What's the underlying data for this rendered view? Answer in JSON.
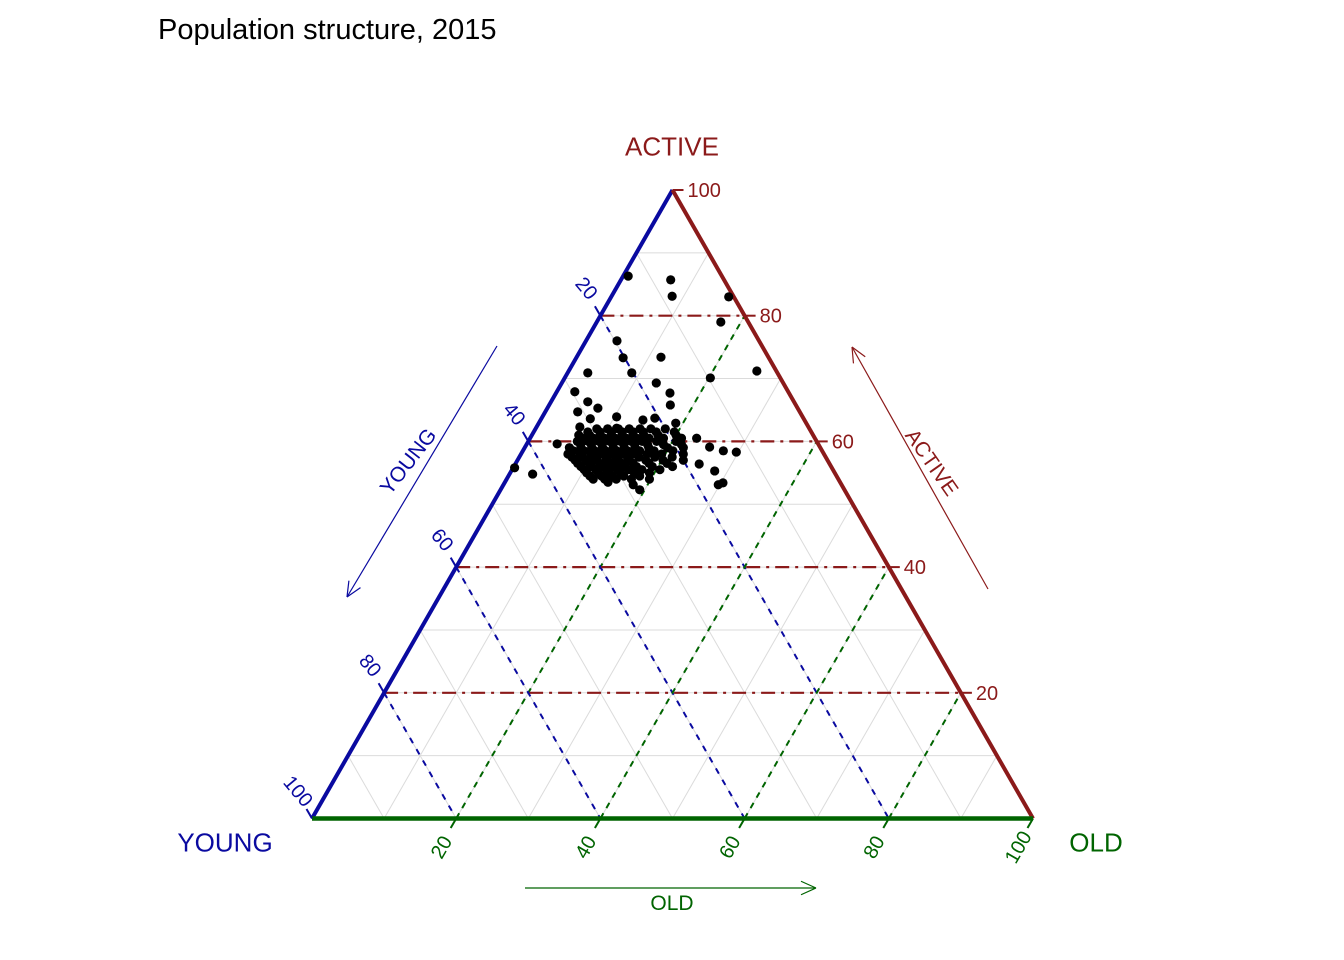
{
  "title": "Population structure, 2015",
  "axes": {
    "active": {
      "label": "ACTIVE",
      "color": "#8B1A1A",
      "ticks": [
        20,
        40,
        60,
        80,
        100
      ]
    },
    "young": {
      "label": "YOUNG",
      "color": "#0A0AA0",
      "ticks": [
        20,
        40,
        60,
        80,
        100
      ]
    },
    "old": {
      "label": "OLD",
      "color": "#006400",
      "ticks": [
        20,
        40,
        60,
        80,
        100
      ]
    }
  },
  "chart_data": {
    "type": "scatter",
    "subtype": "ternary",
    "title": "Population structure, 2015",
    "axis_labels": [
      "YOUNG",
      "ACTIVE",
      "OLD"
    ],
    "axis_range": [
      0,
      100
    ],
    "tick_step": 20,
    "minor_grid_step": 10,
    "grid_on": true,
    "point_color": "#000000",
    "point_radius": 4.6,
    "grid_colors": {
      "active": "#8B1A1A",
      "young": "#0A0AA0",
      "old": "#006400",
      "minor": "#DBDBDB"
    },
    "note": "Each point is [active_pct, old_pct]; young_pct = 100 - active_pct - old_pct",
    "points": [
      [
        85.7,
        6.9
      ],
      [
        83.1,
        8.4
      ],
      [
        86.3,
        0.7
      ],
      [
        83,
        16.3
      ],
      [
        79,
        17.2
      ],
      [
        71.2,
        26.1
      ],
      [
        76,
        4.3
      ],
      [
        73.3,
        6.5
      ],
      [
        70.9,
        8.9
      ],
      [
        70.9,
        2.8
      ],
      [
        73.4,
        11.7
      ],
      [
        70.1,
        20.2
      ],
      [
        69.3,
        13.1
      ],
      [
        67.7,
        15.8
      ],
      [
        65.8,
        16.8
      ],
      [
        67.9,
        2.5
      ],
      [
        66.3,
        5.1
      ],
      [
        65.3,
        7
      ],
      [
        64.7,
        4.5
      ],
      [
        63.6,
        6.8
      ],
      [
        63.9,
        10.3
      ],
      [
        62.1,
        11.2
      ],
      [
        63.4,
        14.2
      ],
      [
        63.7,
        15.7
      ],
      [
        62.9,
        19
      ],
      [
        62.3,
        6
      ],
      [
        60.5,
        23.1
      ],
      [
        59.1,
        25.6
      ],
      [
        58.5,
        27.8
      ],
      [
        58.3,
        29.7
      ],
      [
        56.4,
        25.5
      ],
      [
        55.3,
        28.2
      ],
      [
        53.1,
        29.8
      ],
      [
        59.6,
        4.2
      ],
      [
        54.8,
        3.2
      ],
      [
        55.8,
        0.2
      ],
      [
        53.5,
        14.3
      ],
      [
        53.1,
        18
      ],
      [
        52.3,
        19.3
      ],
      [
        53.4,
        30.3
      ],
      [
        62,
        8.5
      ],
      [
        62,
        10
      ],
      [
        62,
        11.5
      ],
      [
        62,
        13
      ],
      [
        62,
        14.5
      ],
      [
        62,
        16
      ],
      [
        62,
        18
      ],
      [
        61.5,
        7.5
      ],
      [
        61.5,
        9.2
      ],
      [
        61.5,
        10.8
      ],
      [
        61.5,
        12.3
      ],
      [
        61.5,
        13.8
      ],
      [
        61.5,
        15.2
      ],
      [
        61.5,
        17
      ],
      [
        61.5,
        19.5
      ],
      [
        61,
        6.5
      ],
      [
        61,
        8
      ],
      [
        61,
        9.5
      ],
      [
        61,
        11
      ],
      [
        61,
        12.5
      ],
      [
        61,
        14
      ],
      [
        61,
        15.5
      ],
      [
        61,
        17.5
      ],
      [
        61,
        20
      ],
      [
        60.5,
        7.2
      ],
      [
        60.5,
        8.8
      ],
      [
        60.5,
        10.3
      ],
      [
        60.5,
        11.8
      ],
      [
        60.5,
        13.3
      ],
      [
        60.5,
        14.8
      ],
      [
        60.5,
        16.5
      ],
      [
        60.5,
        18.5
      ],
      [
        60.5,
        21
      ],
      [
        60,
        6.8
      ],
      [
        60,
        8.3
      ],
      [
        60,
        9.8
      ],
      [
        60,
        11.3
      ],
      [
        60,
        12.8
      ],
      [
        60,
        14.3
      ],
      [
        60,
        15.8
      ],
      [
        60,
        17.8
      ],
      [
        60,
        20.5
      ],
      [
        59.5,
        7.5
      ],
      [
        59.5,
        9
      ],
      [
        59.5,
        10.5
      ],
      [
        59.5,
        12
      ],
      [
        59.5,
        13.5
      ],
      [
        59.5,
        15
      ],
      [
        59.5,
        16.8
      ],
      [
        59.5,
        19
      ],
      [
        59.5,
        21.5
      ],
      [
        59,
        6.2
      ],
      [
        59,
        7.8
      ],
      [
        59,
        9.3
      ],
      [
        59,
        10.8
      ],
      [
        59,
        12.3
      ],
      [
        59,
        13.8
      ],
      [
        59,
        15.3
      ],
      [
        59,
        17.2
      ],
      [
        59,
        19.8
      ],
      [
        59,
        22
      ],
      [
        58.5,
        7
      ],
      [
        58.5,
        8.5
      ],
      [
        58.5,
        10
      ],
      [
        58.5,
        11.5
      ],
      [
        58.5,
        13
      ],
      [
        58.5,
        14.5
      ],
      [
        58.5,
        16.2
      ],
      [
        58.5,
        18.2
      ],
      [
        58.5,
        20.8
      ],
      [
        58,
        6.5
      ],
      [
        58,
        8.2
      ],
      [
        58,
        9.7
      ],
      [
        58,
        11.2
      ],
      [
        58,
        12.7
      ],
      [
        58,
        14.2
      ],
      [
        58,
        15.7
      ],
      [
        58,
        17.5
      ],
      [
        58,
        19.5
      ],
      [
        58,
        22.5
      ],
      [
        57.5,
        7.3
      ],
      [
        57.5,
        8.8
      ],
      [
        57.5,
        10.4
      ],
      [
        57.5,
        12
      ],
      [
        57.5,
        13.4
      ],
      [
        57.5,
        15
      ],
      [
        57.5,
        16.6
      ],
      [
        57.5,
        18.8
      ],
      [
        57.5,
        21.2
      ],
      [
        57,
        8
      ],
      [
        57,
        9.5
      ],
      [
        57,
        11
      ],
      [
        57,
        12.5
      ],
      [
        57,
        14
      ],
      [
        57,
        15.5
      ],
      [
        57,
        17.8
      ],
      [
        57,
        20.2
      ],
      [
        57,
        23
      ],
      [
        56.5,
        8.6
      ],
      [
        56.5,
        10.2
      ],
      [
        56.5,
        11.7
      ],
      [
        56.5,
        13.2
      ],
      [
        56.5,
        14.7
      ],
      [
        56.5,
        16.3
      ],
      [
        56.5,
        18.5
      ],
      [
        56.5,
        21
      ],
      [
        56,
        9.3
      ],
      [
        56,
        10.8
      ],
      [
        56,
        12.4
      ],
      [
        56,
        13.9
      ],
      [
        56,
        15.4
      ],
      [
        56,
        17
      ],
      [
        56,
        19.2
      ],
      [
        56,
        22
      ],
      [
        55.5,
        10
      ],
      [
        55.5,
        11.6
      ],
      [
        55.5,
        13.1
      ],
      [
        55.5,
        14.6
      ],
      [
        55.5,
        16.2
      ],
      [
        55.5,
        18
      ],
      [
        55.5,
        20.5
      ],
      [
        55,
        10.6
      ],
      [
        55,
        12.2
      ],
      [
        55,
        13.7
      ],
      [
        55,
        15.3
      ],
      [
        55,
        17.2
      ],
      [
        55,
        19.3
      ],
      [
        54.5,
        11.3
      ],
      [
        54.5,
        12.9
      ],
      [
        54.5,
        14.4
      ],
      [
        54.5,
        16
      ],
      [
        54.5,
        18.2
      ],
      [
        54,
        12
      ],
      [
        54,
        13.6
      ],
      [
        54,
        15.2
      ],
      [
        54,
        17.3
      ],
      [
        54,
        19.8
      ]
    ]
  }
}
